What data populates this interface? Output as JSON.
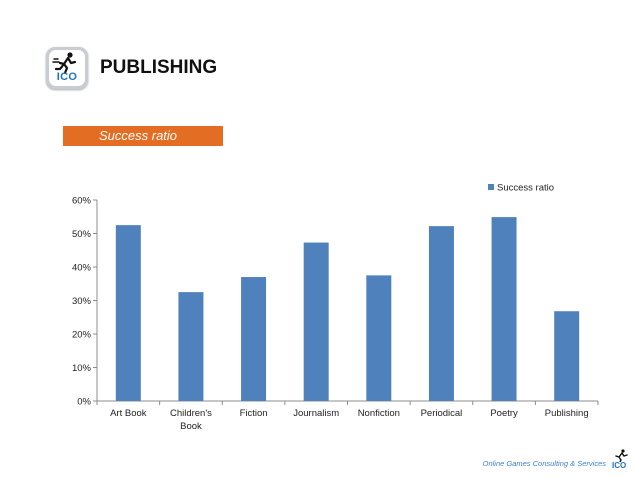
{
  "header": {
    "logo_text": "ICO",
    "title": "PUBLISHING"
  },
  "section": {
    "label": "Success ratio"
  },
  "footer": {
    "text": "Online Games Consulting & Services",
    "logo_text": "ICO"
  },
  "colors": {
    "bar": "#4f81bd",
    "section_bg": "#e26d23",
    "logo_blue": "#1e73be"
  },
  "chart_data": {
    "type": "bar",
    "categories": [
      "Art Book",
      "Children's Book",
      "Fiction",
      "Journalism",
      "Nonfiction",
      "Periodical",
      "Poetry",
      "Publishing"
    ],
    "category_lines": [
      [
        "Art Book"
      ],
      [
        "Children's",
        "Book"
      ],
      [
        "Fiction"
      ],
      [
        "Journalism"
      ],
      [
        "Nonfiction"
      ],
      [
        "Periodical"
      ],
      [
        "Poetry"
      ],
      [
        "Publishing"
      ]
    ],
    "series": [
      {
        "name": "Success ratio",
        "values": [
          0.525,
          0.325,
          0.37,
          0.473,
          0.375,
          0.522,
          0.549,
          0.268
        ]
      }
    ],
    "ylim": [
      0,
      0.6
    ],
    "yticks": [
      0,
      0.1,
      0.2,
      0.3,
      0.4,
      0.5,
      0.6
    ],
    "ytick_labels": [
      "0%",
      "10%",
      "20%",
      "30%",
      "40%",
      "50%",
      "60%"
    ],
    "legend_position": "top-right",
    "grid": false
  }
}
